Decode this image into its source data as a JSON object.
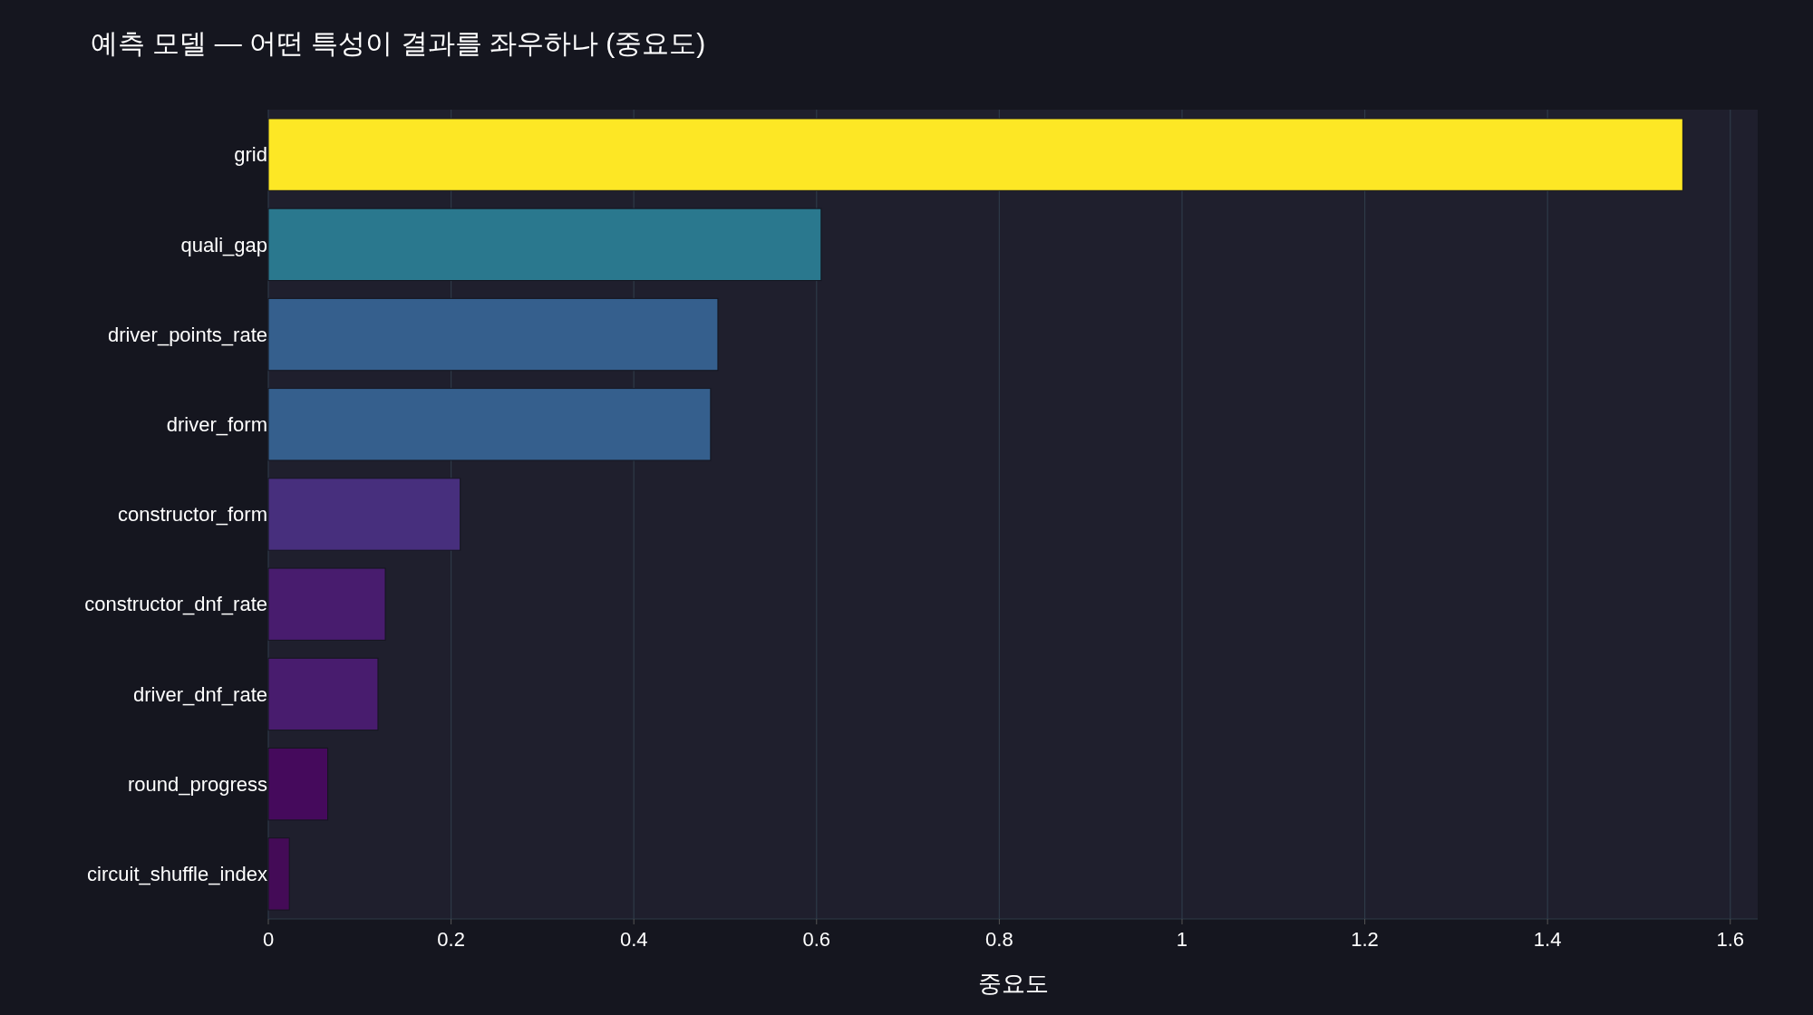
{
  "chart_data": {
    "type": "bar",
    "orientation": "horizontal",
    "title": "예측 모델 — 어떤 특성이 결과를 좌우하나 (중요도)",
    "xlabel": "중요도",
    "categories": [
      "grid",
      "quali_gap",
      "driver_points_rate",
      "driver_form",
      "constructor_form",
      "constructor_dnf_rate",
      "driver_dnf_rate",
      "round_progress",
      "circuit_shuffle_index"
    ],
    "values": [
      1.548,
      0.605,
      0.492,
      0.484,
      0.21,
      0.128,
      0.12,
      0.065,
      0.023
    ],
    "colors": [
      "#fde725",
      "#2a788e",
      "#355f8d",
      "#355f8d",
      "#472f7d",
      "#481c6e",
      "#481c6e",
      "#450a5c",
      "#440b57"
    ],
    "xlim": [
      0,
      1.63
    ],
    "xticks": [
      0,
      0.2,
      0.4,
      0.6,
      0.8,
      1,
      1.2,
      1.4,
      1.6
    ],
    "grid": "x"
  }
}
